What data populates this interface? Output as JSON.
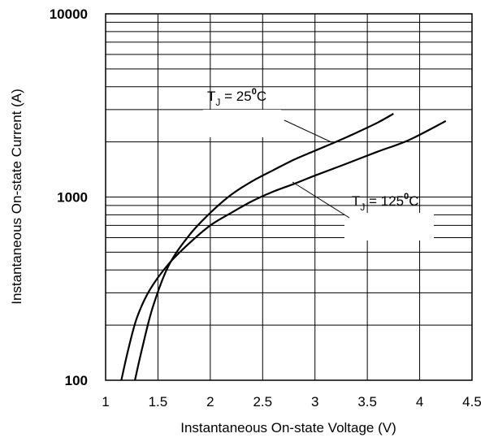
{
  "chart_data": {
    "type": "line",
    "xlabel": "Instantaneous On-state Voltage (V)",
    "ylabel": "Instantaneous On-state Current (A)",
    "xlim": [
      1,
      4.5
    ],
    "ylim": [
      100,
      10000
    ],
    "y_scale": "log",
    "grid": true,
    "x_ticks": [
      "1",
      "1.5",
      "2",
      "2.5",
      "3",
      "3.5",
      "4",
      "4.5"
    ],
    "y_ticks": [
      "100",
      "1000",
      "10000"
    ],
    "series": [
      {
        "name": "TJ = 25°C",
        "label_parts": {
          "t": "T",
          "sub": "J",
          "eq": " = 25",
          "deg": "0",
          "unit": "C"
        },
        "points": [
          [
            1.28,
            100
          ],
          [
            1.35,
            150
          ],
          [
            1.45,
            250
          ],
          [
            1.6,
            420
          ],
          [
            1.8,
            620
          ],
          [
            2.0,
            820
          ],
          [
            2.2,
            1030
          ],
          [
            2.4,
            1220
          ],
          [
            2.6,
            1400
          ],
          [
            2.8,
            1600
          ],
          [
            3.0,
            1790
          ],
          [
            3.2,
            2000
          ],
          [
            3.4,
            2250
          ],
          [
            3.6,
            2550
          ],
          [
            3.75,
            2850
          ]
        ]
      },
      {
        "name": "TJ = 125°C",
        "label_parts": {
          "t": "T",
          "sub": "J",
          "eq": " = 125",
          "deg": "0",
          "unit": "C"
        },
        "points": [
          [
            1.15,
            100
          ],
          [
            1.22,
            150
          ],
          [
            1.3,
            220
          ],
          [
            1.42,
            310
          ],
          [
            1.6,
            430
          ],
          [
            1.8,
            560
          ],
          [
            2.0,
            700
          ],
          [
            2.2,
            820
          ],
          [
            2.4,
            950
          ],
          [
            2.6,
            1070
          ],
          [
            2.8,
            1180
          ],
          [
            3.0,
            1310
          ],
          [
            3.3,
            1520
          ],
          [
            3.6,
            1770
          ],
          [
            3.9,
            2050
          ],
          [
            4.25,
            2600
          ]
        ]
      }
    ]
  }
}
